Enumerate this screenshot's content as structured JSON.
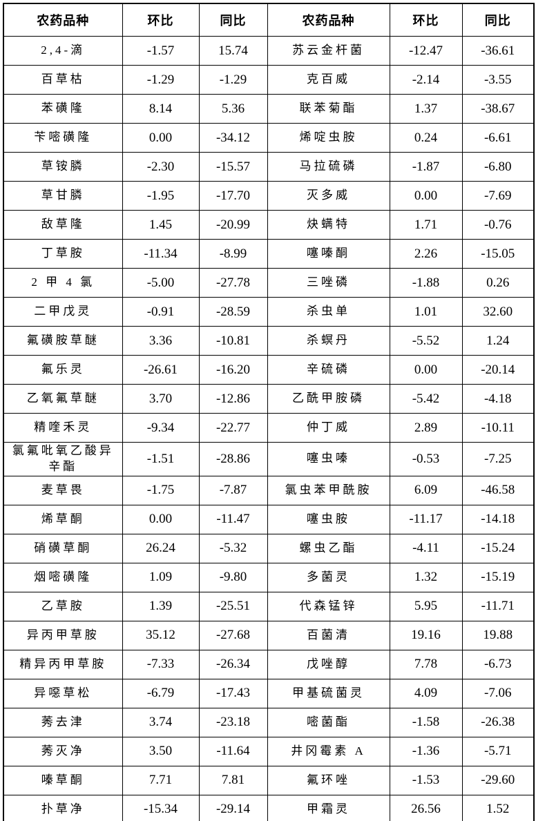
{
  "table": {
    "title": "pesticide-price-change-table",
    "columns": [
      "农药品种",
      "环比",
      "同比",
      "农药品种",
      "环比",
      "同比"
    ],
    "text_color": "#000000",
    "border_color": "#000000",
    "background_color": "#ffffff",
    "rows": [
      [
        "2,4-滴",
        "-1.57",
        "15.74",
        "苏云金杆菌",
        "-12.47",
        "-36.61"
      ],
      [
        "百草枯",
        "-1.29",
        "-1.29",
        "克百威",
        "-2.14",
        "-3.55"
      ],
      [
        "苯磺隆",
        "8.14",
        "5.36",
        "联苯菊酯",
        "1.37",
        "-38.67"
      ],
      [
        "苄嘧磺隆",
        "0.00",
        "-34.12",
        "烯啶虫胺",
        "0.24",
        "-6.61"
      ],
      [
        "草铵膦",
        "-2.30",
        "-15.57",
        "马拉硫磷",
        "-1.87",
        "-6.80"
      ],
      [
        "草甘膦",
        "-1.95",
        "-17.70",
        "灭多威",
        "0.00",
        "-7.69"
      ],
      [
        "敌草隆",
        "1.45",
        "-20.99",
        "炔螨特",
        "1.71",
        "-0.76"
      ],
      [
        "丁草胺",
        "-11.34",
        "-8.99",
        "噻嗪酮",
        "2.26",
        "-15.05"
      ],
      [
        "2 甲 4 氯",
        "-5.00",
        "-27.78",
        "三唑磷",
        "-1.88",
        "0.26"
      ],
      [
        "二甲戊灵",
        "-0.91",
        "-28.59",
        "杀虫单",
        "1.01",
        "32.60"
      ],
      [
        "氟磺胺草醚",
        "3.36",
        "-10.81",
        "杀螟丹",
        "-5.52",
        "1.24"
      ],
      [
        "氟乐灵",
        "-26.61",
        "-16.20",
        "辛硫磷",
        "0.00",
        "-20.14"
      ],
      [
        "乙氧氟草醚",
        "3.70",
        "-12.86",
        "乙酰甲胺磷",
        "-5.42",
        "-4.18"
      ],
      [
        "精喹禾灵",
        "-9.34",
        "-22.77",
        "仲丁威",
        "2.89",
        "-10.11"
      ],
      [
        "氯氟吡氧乙酸异辛酯",
        "-1.51",
        "-28.86",
        "噻虫嗪",
        "-0.53",
        "-7.25"
      ],
      [
        "麦草畏",
        "-1.75",
        "-7.87",
        "氯虫苯甲酰胺",
        "6.09",
        "-46.58"
      ],
      [
        "烯草酮",
        "0.00",
        "-11.47",
        "噻虫胺",
        "-11.17",
        "-14.18"
      ],
      [
        "硝磺草酮",
        "26.24",
        "-5.32",
        "螺虫乙酯",
        "-4.11",
        "-15.24"
      ],
      [
        "烟嘧磺隆",
        "1.09",
        "-9.80",
        "多菌灵",
        "1.32",
        "-15.19"
      ],
      [
        "乙草胺",
        "1.39",
        "-25.51",
        "代森锰锌",
        "5.95",
        "-11.71"
      ],
      [
        "异丙甲草胺",
        "35.12",
        "-27.68",
        "百菌清",
        "19.16",
        "19.88"
      ],
      [
        "精异丙甲草胺",
        "-7.33",
        "-26.34",
        "戊唑醇",
        "7.78",
        "-6.73"
      ],
      [
        "异噁草松",
        "-6.79",
        "-17.43",
        "甲基硫菌灵",
        "4.09",
        "-7.06"
      ],
      [
        "莠去津",
        "3.74",
        "-23.18",
        "嘧菌酯",
        "-1.58",
        "-26.38"
      ],
      [
        "莠灭净",
        "3.50",
        "-11.64",
        "井冈霉素 A",
        "-1.36",
        "-5.71"
      ],
      [
        "嗪草酮",
        "7.71",
        "7.81",
        "氟环唑",
        "-1.53",
        "-29.60"
      ],
      [
        "扑草净",
        "-15.34",
        "-29.14",
        "甲霜灵",
        "26.56",
        "1.52"
      ]
    ]
  }
}
